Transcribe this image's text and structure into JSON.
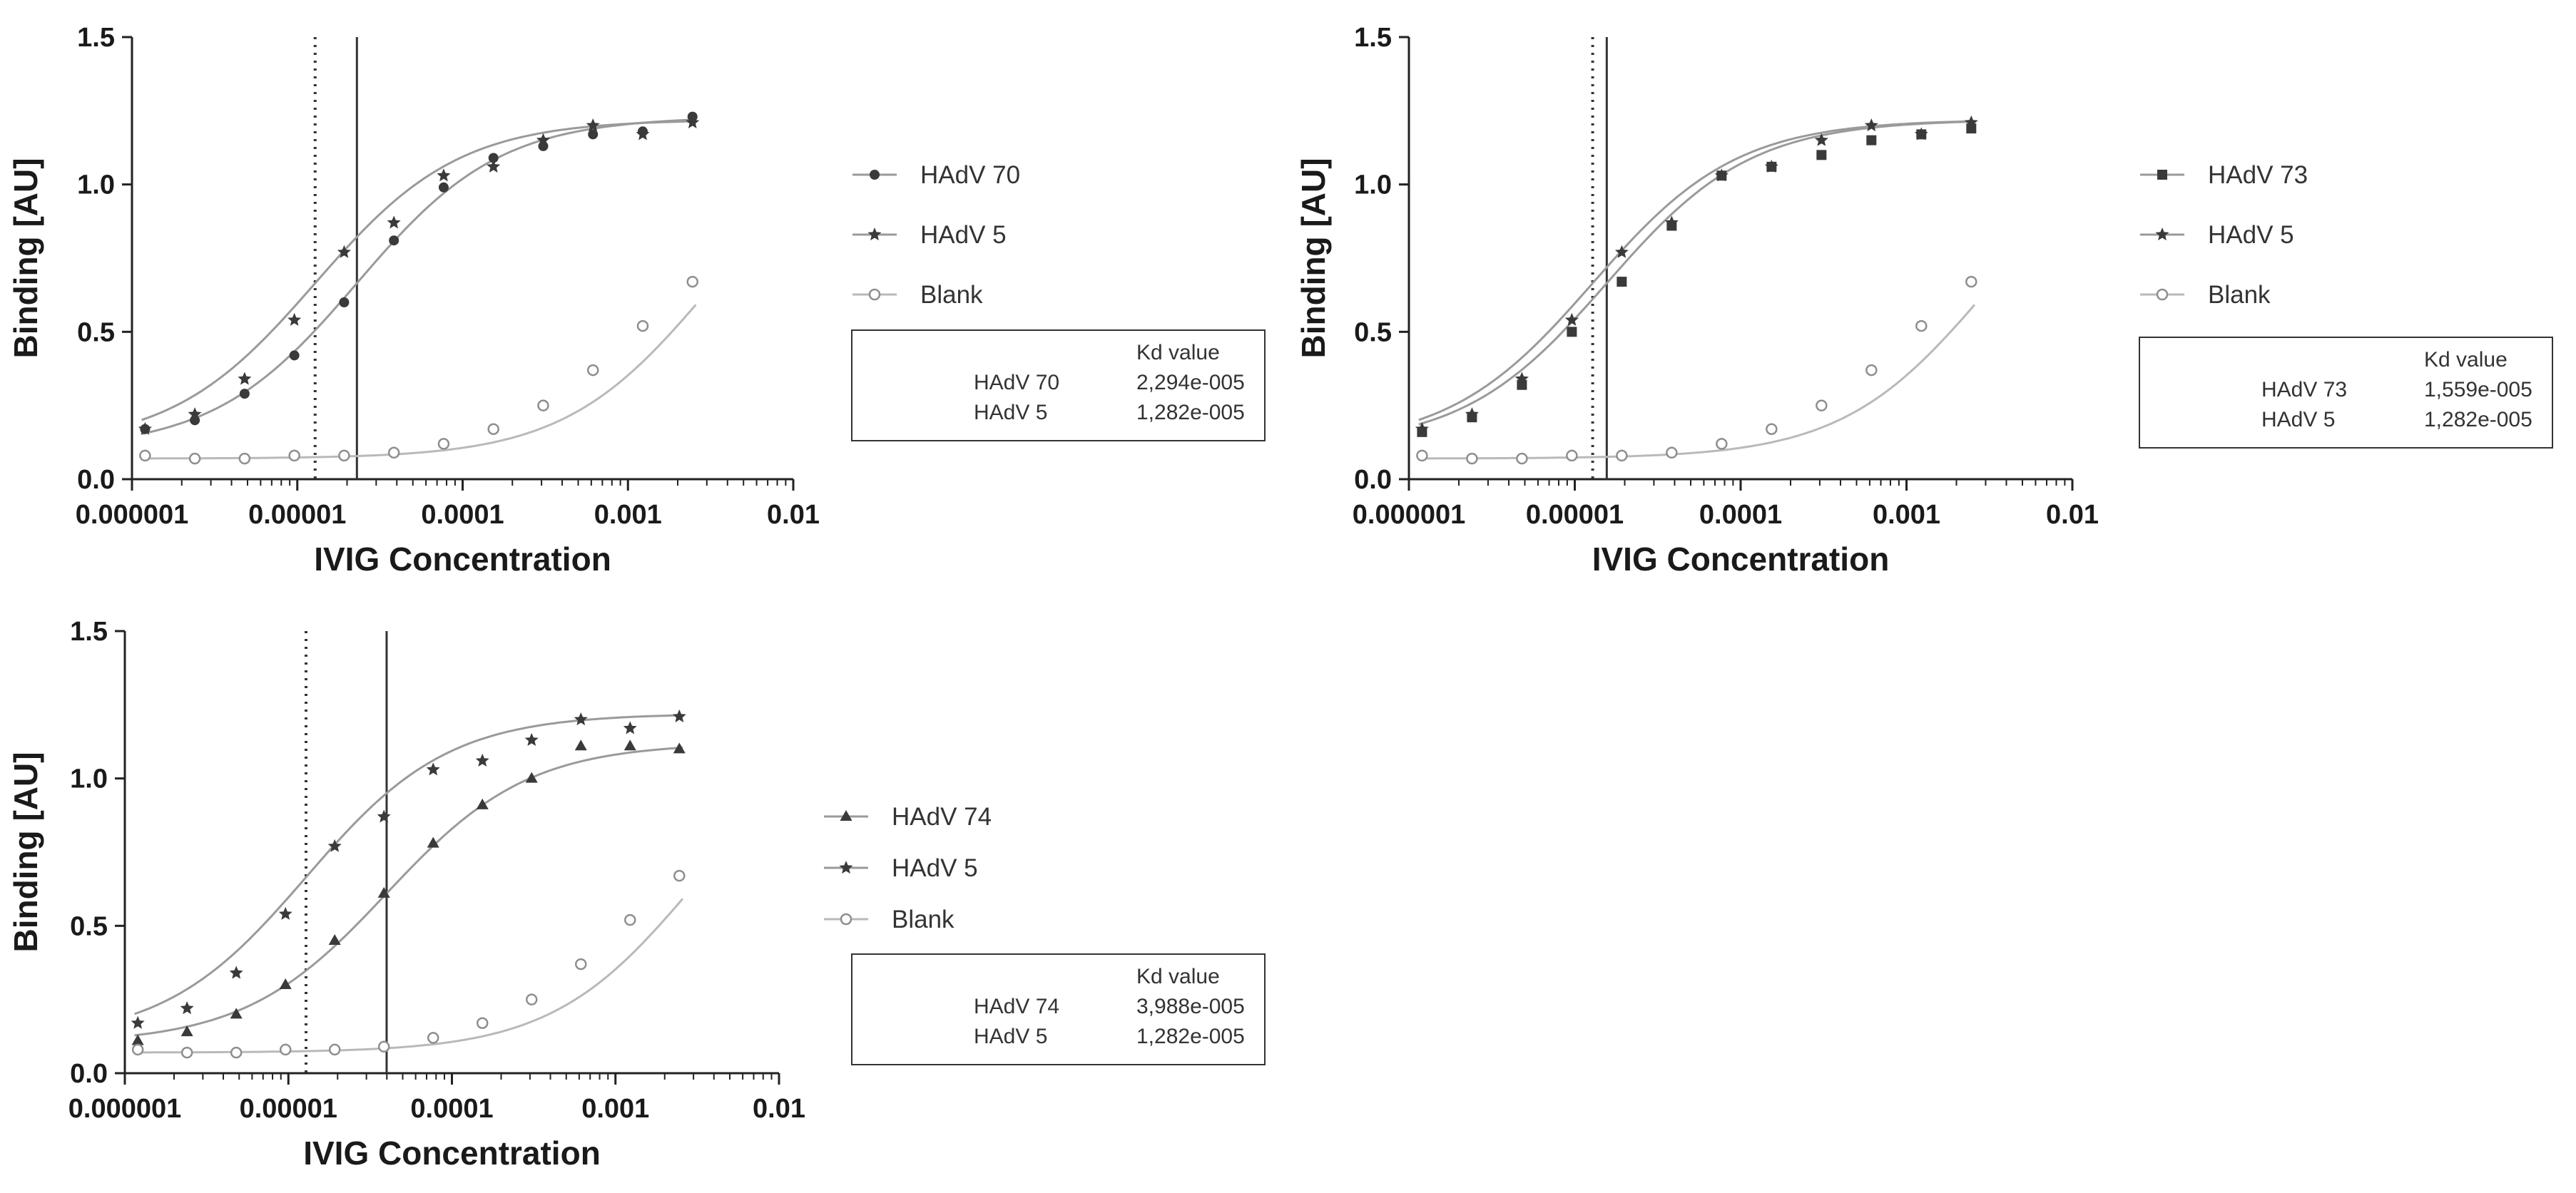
{
  "chart_data": [
    {
      "type": "scatter",
      "id": "p1",
      "xscale": "log",
      "xlim": [
        1e-06,
        0.01
      ],
      "ylim": [
        0,
        1.5
      ],
      "xticks": [
        1e-06,
        1e-05,
        0.0001,
        0.001,
        0.01
      ],
      "xtick_labels": [
        "0.000001",
        "0.00001",
        "0.0001",
        "0.001",
        "0.01"
      ],
      "yticks": [
        0,
        0.5,
        1,
        1.5
      ],
      "ytick_labels": [
        "0.0",
        "0.5",
        "1.0",
        "1.5"
      ],
      "xlabel": "IVIG Concentration",
      "ylabel": "Binding [AU]",
      "vlines": [
        {
          "x": 1.282e-05,
          "style": "dotted"
        },
        {
          "x": 2.294e-05,
          "style": "solid"
        }
      ],
      "series": [
        {
          "name": "HAdV 70",
          "marker": "circle-filled",
          "kd": 2.294e-05,
          "bottom": 0.1,
          "top": 1.23,
          "x": [
            1.2e-06,
            2.4e-06,
            4.8e-06,
            9.6e-06,
            1.92e-05,
            3.84e-05,
            7.68e-05,
            0.0001536,
            0.0003072,
            0.0006144,
            0.0012288,
            0.0024576
          ],
          "y": [
            0.17,
            0.2,
            0.29,
            0.42,
            0.6,
            0.81,
            0.99,
            1.09,
            1.13,
            1.17,
            1.18,
            1.23
          ]
        },
        {
          "name": "HAdV 5",
          "marker": "star",
          "kd": 1.282e-05,
          "bottom": 0.11,
          "top": 1.22,
          "x": [
            1.2e-06,
            2.4e-06,
            4.8e-06,
            9.6e-06,
            1.92e-05,
            3.84e-05,
            7.68e-05,
            0.0001536,
            0.0003072,
            0.0006144,
            0.0012288,
            0.0024576
          ],
          "y": [
            0.17,
            0.22,
            0.34,
            0.54,
            0.77,
            0.87,
            1.03,
            1.06,
            1.15,
            1.2,
            1.17,
            1.21
          ]
        },
        {
          "name": "Blank",
          "marker": "circle-open",
          "kd": 0.003,
          "bottom": 0.07,
          "top": 1.2,
          "x": [
            1.2e-06,
            2.4e-06,
            4.8e-06,
            9.6e-06,
            1.92e-05,
            3.84e-05,
            7.68e-05,
            0.0001536,
            0.0003072,
            0.0006144,
            0.0012288,
            0.0024576
          ],
          "y": [
            0.08,
            0.07,
            0.07,
            0.08,
            0.08,
            0.09,
            0.12,
            0.17,
            0.25,
            0.37,
            0.52,
            0.67
          ]
        }
      ],
      "kd_table": {
        "header": "Kd value",
        "rows": [
          {
            "name": "HAdV 70",
            "value": "2,294e-005"
          },
          {
            "name": "HAdV 5",
            "value": "1,282e-005"
          }
        ]
      }
    },
    {
      "type": "scatter",
      "id": "p2",
      "xscale": "log",
      "xlim": [
        1e-06,
        0.01
      ],
      "ylim": [
        0,
        1.5
      ],
      "xticks": [
        1e-06,
        1e-05,
        0.0001,
        0.001,
        0.01
      ],
      "xtick_labels": [
        "0.000001",
        "0.00001",
        "0.0001",
        "0.001",
        "0.01"
      ],
      "yticks": [
        0,
        0.5,
        1,
        1.5
      ],
      "ytick_labels": [
        "0.0",
        "0.5",
        "1.0",
        "1.5"
      ],
      "xlabel": "IVIG Concentration",
      "ylabel": "Binding [AU]",
      "vlines": [
        {
          "x": 1.282e-05,
          "style": "dotted"
        },
        {
          "x": 1.559e-05,
          "style": "solid"
        }
      ],
      "series": [
        {
          "name": "HAdV 73",
          "marker": "square",
          "kd": 1.559e-05,
          "bottom": 0.11,
          "top": 1.22,
          "x": [
            1.2e-06,
            2.4e-06,
            4.8e-06,
            9.6e-06,
            1.92e-05,
            3.84e-05,
            7.68e-05,
            0.0001536,
            0.0003072,
            0.0006144,
            0.0012288,
            0.0024576
          ],
          "y": [
            0.16,
            0.21,
            0.32,
            0.5,
            0.67,
            0.86,
            1.03,
            1.06,
            1.1,
            1.15,
            1.17,
            1.19
          ]
        },
        {
          "name": "HAdV 5",
          "marker": "star",
          "kd": 1.282e-05,
          "bottom": 0.11,
          "top": 1.22,
          "x": [
            1.2e-06,
            2.4e-06,
            4.8e-06,
            9.6e-06,
            1.92e-05,
            3.84e-05,
            7.68e-05,
            0.0001536,
            0.0003072,
            0.0006144,
            0.0012288,
            0.0024576
          ],
          "y": [
            0.17,
            0.22,
            0.34,
            0.54,
            0.77,
            0.87,
            1.03,
            1.06,
            1.15,
            1.2,
            1.17,
            1.21
          ]
        },
        {
          "name": "Blank",
          "marker": "circle-open",
          "kd": 0.003,
          "bottom": 0.07,
          "top": 1.2,
          "x": [
            1.2e-06,
            2.4e-06,
            4.8e-06,
            9.6e-06,
            1.92e-05,
            3.84e-05,
            7.68e-05,
            0.0001536,
            0.0003072,
            0.0006144,
            0.0012288,
            0.0024576
          ],
          "y": [
            0.08,
            0.07,
            0.07,
            0.08,
            0.08,
            0.09,
            0.12,
            0.17,
            0.25,
            0.37,
            0.52,
            0.67
          ]
        }
      ],
      "kd_table": {
        "header": "Kd value",
        "rows": [
          {
            "name": "HAdV 73",
            "value": "1,559e-005"
          },
          {
            "name": "HAdV 5",
            "value": "1,282e-005"
          }
        ]
      }
    },
    {
      "type": "scatter",
      "id": "p3",
      "xscale": "log",
      "xlim": [
        1e-06,
        0.01
      ],
      "ylim": [
        0,
        1.5
      ],
      "xticks": [
        1e-06,
        1e-05,
        0.0001,
        0.001,
        0.01
      ],
      "xtick_labels": [
        "0.000001",
        "0.00001",
        "0.0001",
        "0.001",
        "0.01"
      ],
      "yticks": [
        0,
        0.5,
        1,
        1.5
      ],
      "ytick_labels": [
        "0.0",
        "0.5",
        "1.0",
        "1.5"
      ],
      "xlabel": "IVIG Concentration",
      "ylabel": "Binding [AU]",
      "vlines": [
        {
          "x": 1.282e-05,
          "style": "dotted"
        },
        {
          "x": 3.988e-05,
          "style": "solid"
        }
      ],
      "series": [
        {
          "name": "HAdV 74",
          "marker": "triangle",
          "kd": 3.988e-05,
          "bottom": 0.1,
          "top": 1.12,
          "x": [
            1.2e-06,
            2.4e-06,
            4.8e-06,
            9.6e-06,
            1.92e-05,
            3.84e-05,
            7.68e-05,
            0.0001536,
            0.0003072,
            0.0006144,
            0.0012288,
            0.0024576
          ],
          "y": [
            0.11,
            0.14,
            0.2,
            0.3,
            0.45,
            0.61,
            0.78,
            0.91,
            1.0,
            1.11,
            1.11,
            1.1
          ]
        },
        {
          "name": "HAdV 5",
          "marker": "star",
          "kd": 1.282e-05,
          "bottom": 0.11,
          "top": 1.22,
          "x": [
            1.2e-06,
            2.4e-06,
            4.8e-06,
            9.6e-06,
            1.92e-05,
            3.84e-05,
            7.68e-05,
            0.0001536,
            0.0003072,
            0.0006144,
            0.0012288,
            0.0024576
          ],
          "y": [
            0.17,
            0.22,
            0.34,
            0.54,
            0.77,
            0.87,
            1.03,
            1.06,
            1.13,
            1.2,
            1.17,
            1.21
          ]
        },
        {
          "name": "Blank",
          "marker": "circle-open",
          "kd": 0.003,
          "bottom": 0.07,
          "top": 1.2,
          "x": [
            1.2e-06,
            2.4e-06,
            4.8e-06,
            9.6e-06,
            1.92e-05,
            3.84e-05,
            7.68e-05,
            0.0001536,
            0.0003072,
            0.0006144,
            0.0012288,
            0.0024576
          ],
          "y": [
            0.08,
            0.07,
            0.07,
            0.08,
            0.08,
            0.09,
            0.12,
            0.17,
            0.25,
            0.37,
            0.52,
            0.67
          ]
        }
      ],
      "kd_table": {
        "header": "Kd value",
        "rows": [
          {
            "name": "HAdV 74",
            "value": "3,988e-005"
          },
          {
            "name": "HAdV 5",
            "value": "1,282e-005"
          }
        ]
      }
    }
  ]
}
